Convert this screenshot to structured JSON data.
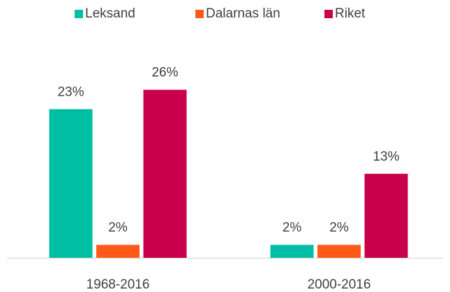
{
  "chart_data": {
    "type": "bar",
    "categories": [
      "1968-2016",
      "2000-2016"
    ],
    "series": [
      {
        "name": "Leksand",
        "color": "#00bfa5",
        "values": [
          23,
          2
        ],
        "value_labels": [
          "23%",
          "2%"
        ]
      },
      {
        "name": "Dalarnas län",
        "color": "#ff5a1a",
        "values": [
          2,
          2
        ],
        "value_labels": [
          "2%",
          "2%"
        ]
      },
      {
        "name": "Riket",
        "color": "#c8004b",
        "values": [
          26,
          13
        ],
        "value_labels": [
          "26%",
          "13%"
        ]
      }
    ],
    "legend": "top"
  }
}
